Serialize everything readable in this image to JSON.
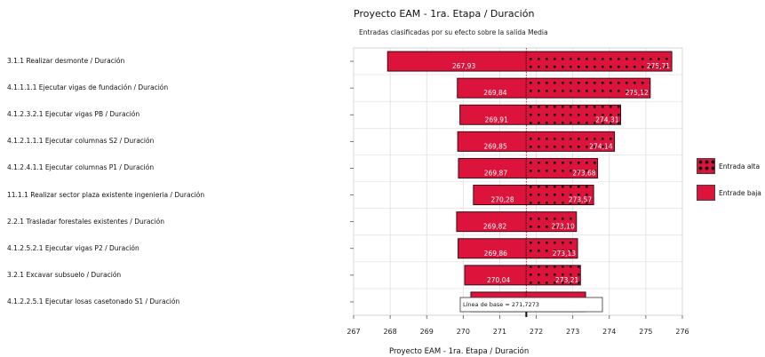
{
  "chart_data": {
    "type": "bar",
    "title": "Proyecto EAM - 1ra. Etapa / Duración",
    "subtitle": "Entradas clasificadas por su efecto sobre la salida Media",
    "xlabel": "Proyecto EAM - 1ra. Etapa / Duración",
    "baseline": 271.7273,
    "baseline_label": "Línea de base = 271,7273",
    "xlim": [
      267,
      276
    ],
    "xticks": [
      "267",
      "268",
      "269",
      "270",
      "271",
      "272",
      "273",
      "274",
      "275",
      "276"
    ],
    "grid": true,
    "legend_position": "right",
    "categories": [
      "3.1.1 Realizar desmonte / Duración",
      "4.1.1.1.1 Ejecutar vigas de fundación / Duración",
      "4.1.2.3.2.1 Ejecutar vigas PB / Duración",
      "4.1.2.1.1.1 Ejecutar columnas S2 / Duración",
      "4.1.2.4.1.1 Ejecutar columnas P1 / Duración",
      "11.1.1 Realizar sector plaza existente ingenieria / Duración",
      "2.2.1 Trasladar forestales existentes / Duración",
      "4.1.2.5.2.1 Ejecutar vigas P2 / Duración",
      "3.2.1 Excavar subsuelo / Duración",
      "4.1.2.2.5.1 Ejecutar losas casetonado S1 / Duración"
    ],
    "series": [
      {
        "name": "Entrada alta",
        "values": [
          275.71,
          275.12,
          274.31,
          274.14,
          273.68,
          273.57,
          273.1,
          273.13,
          273.21,
          273.35
        ],
        "labels": [
          "275,71",
          "275,12",
          "274,31",
          "274,14",
          "273,68",
          "273,57",
          "273,10",
          "273,13",
          "273,21",
          "273,35"
        ]
      },
      {
        "name": "Entrade baja",
        "values": [
          267.93,
          269.84,
          269.91,
          269.85,
          269.87,
          270.28,
          269.82,
          269.86,
          270.04,
          270.21
        ],
        "labels": [
          "267,93",
          "269,84",
          "269,91",
          "269,85",
          "269,87",
          "270,28",
          "269,82",
          "269,86",
          "270,04",
          "270,21"
        ]
      }
    ],
    "colors": {
      "bar": "#dc143c",
      "border": "#3a0a14",
      "dot": "#111111",
      "grid": "#dddddd",
      "baseline": "#dc143c"
    }
  }
}
